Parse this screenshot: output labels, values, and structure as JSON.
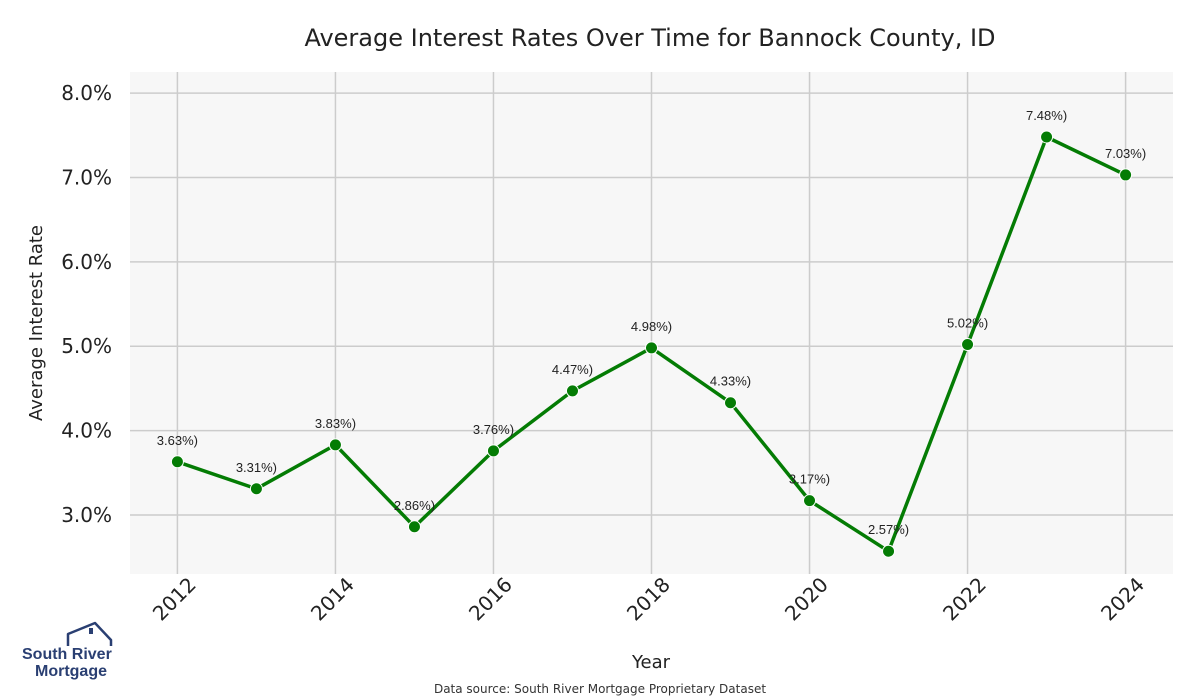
{
  "chart_data": {
    "type": "line",
    "title": "Average Interest Rates Over Time for Bannock County, ID",
    "xlabel": "Year",
    "ylabel": "Average Interest Rate",
    "x": [
      2012,
      2013,
      2014,
      2015,
      2016,
      2017,
      2018,
      2019,
      2020,
      2021,
      2022,
      2023,
      2024
    ],
    "values": [
      3.63,
      3.31,
      3.83,
      2.86,
      3.76,
      4.47,
      4.98,
      4.33,
      3.17,
      2.57,
      5.02,
      7.48,
      7.03
    ],
    "data_labels": [
      "3.63%)",
      "3.31%)",
      "3.83%)",
      "2.86%)",
      "3.76%)",
      "4.47%)",
      "4.98%)",
      "4.33%)",
      "3.17%)",
      "2.57%)",
      "5.02%)",
      "7.48%)",
      "7.03%)"
    ],
    "xticks": [
      "2012",
      "2014",
      "2016",
      "2018",
      "2020",
      "2022",
      "2024"
    ],
    "yticks": [
      3.0,
      4.0,
      5.0,
      6.0,
      7.0,
      8.0
    ],
    "ytick_labels": [
      "3.0%",
      "4.0%",
      "5.0%",
      "6.0%",
      "7.0%",
      "8.0%"
    ],
    "xlim": [
      2011.4,
      2024.6
    ],
    "ylim": [
      2.3,
      8.25
    ],
    "grid": true,
    "line_color": "#047c04",
    "background_color": "#f7f7f7"
  },
  "source_note": "Data source: South River Mortgage Proprietary Dataset",
  "logo": {
    "line1": "South River",
    "line2": "Mortgage",
    "icon": "house-icon",
    "color": "#2a3f72"
  }
}
